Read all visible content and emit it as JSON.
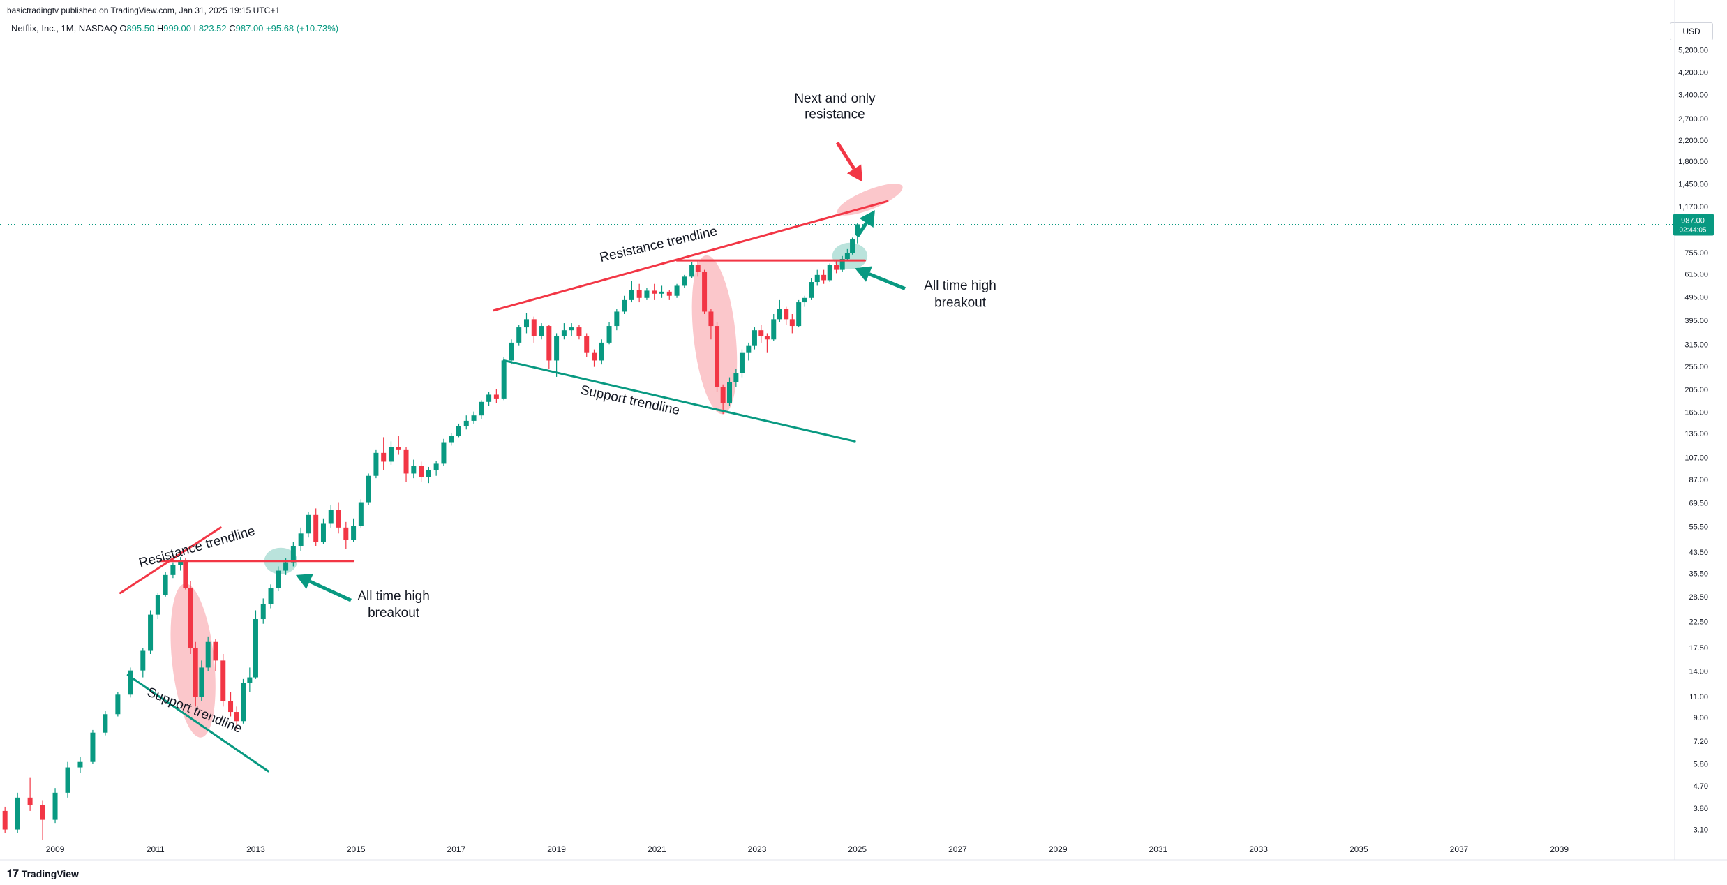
{
  "header": {
    "published": "basictradingtv published on TradingView.com, Jan 31, 2025 19:15 UTC+1"
  },
  "symbol": {
    "name": "Netflix, Inc., 1M, NASDAQ",
    "o_label": "O",
    "o_value": "895.50",
    "h_label": "H",
    "h_value": "999.00",
    "l_label": "L",
    "l_value": "823.52",
    "c_label": "C",
    "c_value": "987.00",
    "change": "+95.68 (+10.73%)"
  },
  "currency": "USD",
  "footer": {
    "brand": "TradingView"
  },
  "colors": {
    "up": "#089981",
    "down": "#f23645",
    "resistance": "#f23645",
    "support": "#089981",
    "price_badge": "#089981",
    "axis_text": "#131722"
  },
  "price_badge": {
    "price": "987.00",
    "countdown": "02:44:05"
  },
  "chart_data": {
    "type": "candlestick",
    "title": "",
    "y_scale": "log",
    "ylim": [
      2.6,
      5800
    ],
    "xlim": [
      2007.9,
      2041.3
    ],
    "y_ticks": [
      "3.10",
      "3.80",
      "4.70",
      "5.80",
      "7.20",
      "9.00",
      "11.00",
      "14.00",
      "17.50",
      "22.50",
      "28.50",
      "35.50",
      "43.50",
      "55.50",
      "69.50",
      "87.00",
      "107.00",
      "135.00",
      "165.00",
      "205.00",
      "255.00",
      "315.00",
      "395.00",
      "495.00",
      "615.00",
      "755.00",
      "1,170.00",
      "1,450.00",
      "1,800.00",
      "2,200.00",
      "2,700.00",
      "3,400.00",
      "4,200.00",
      "5,200.00"
    ],
    "x_ticks": [
      "2009",
      "2011",
      "2013",
      "2015",
      "2017",
      "2019",
      "2021",
      "2023",
      "2025",
      "2027",
      "2029",
      "2031",
      "2033",
      "2035",
      "2037",
      "2039"
    ],
    "last_price": 987.0,
    "candles": [
      [
        2008.0,
        3.7,
        3.85,
        3.0,
        3.1
      ],
      [
        2008.25,
        3.1,
        4.4,
        3.0,
        4.2
      ],
      [
        2008.5,
        4.2,
        5.1,
        3.7,
        3.9
      ],
      [
        2008.75,
        3.9,
        4.1,
        2.8,
        3.4
      ],
      [
        2009.0,
        3.4,
        4.6,
        3.3,
        4.4
      ],
      [
        2009.25,
        4.4,
        5.9,
        4.2,
        5.6
      ],
      [
        2009.5,
        5.6,
        6.2,
        5.3,
        5.9
      ],
      [
        2009.75,
        5.9,
        8.0,
        5.8,
        7.8
      ],
      [
        2010.0,
        7.8,
        9.6,
        7.6,
        9.3
      ],
      [
        2010.25,
        9.3,
        11.5,
        9.1,
        11.2
      ],
      [
        2010.5,
        11.2,
        14.5,
        10.9,
        14.1
      ],
      [
        2010.75,
        14.1,
        17.5,
        13.2,
        17.0
      ],
      [
        2010.9,
        17.0,
        25.0,
        16.5,
        24.0
      ],
      [
        2011.05,
        24.0,
        29.5,
        23.0,
        29.0
      ],
      [
        2011.2,
        29.0,
        36.0,
        28.5,
        35.0
      ],
      [
        2011.35,
        35.0,
        39.5,
        34.0,
        38.5
      ],
      [
        2011.5,
        38.5,
        41.5,
        36.5,
        40.0
      ],
      [
        2011.6,
        40.0,
        41.0,
        30.5,
        31.0
      ],
      [
        2011.7,
        31.0,
        33.0,
        16.5,
        17.5
      ],
      [
        2011.8,
        17.5,
        18.5,
        10.0,
        11.0
      ],
      [
        2011.92,
        11.0,
        15.5,
        10.5,
        14.5
      ],
      [
        2012.05,
        14.5,
        19.5,
        14.0,
        18.5
      ],
      [
        2012.2,
        18.5,
        19.0,
        14.0,
        15.5
      ],
      [
        2012.35,
        15.5,
        16.5,
        10.0,
        10.5
      ],
      [
        2012.5,
        10.5,
        11.5,
        9.1,
        9.5
      ],
      [
        2012.62,
        9.5,
        10.0,
        8.0,
        8.7
      ],
      [
        2012.75,
        8.7,
        13.0,
        8.5,
        12.5
      ],
      [
        2012.88,
        12.5,
        14.5,
        11.5,
        13.2
      ],
      [
        2013.0,
        13.2,
        25.0,
        13.0,
        23.0
      ],
      [
        2013.15,
        23.0,
        28.0,
        22.0,
        26.5
      ],
      [
        2013.3,
        26.5,
        32.0,
        25.5,
        31.0
      ],
      [
        2013.45,
        31.0,
        38.0,
        30.0,
        36.5
      ],
      [
        2013.6,
        36.5,
        41.0,
        35.0,
        39.5
      ],
      [
        2013.75,
        39.5,
        48.0,
        38.0,
        46.0
      ],
      [
        2013.9,
        46.0,
        55.0,
        44.0,
        52.0
      ],
      [
        2014.05,
        52.0,
        64.0,
        50.0,
        62.0
      ],
      [
        2014.2,
        62.0,
        66.0,
        46.0,
        48.0
      ],
      [
        2014.35,
        48.0,
        60.0,
        47.0,
        57.0
      ],
      [
        2014.5,
        57.0,
        68.0,
        55.0,
        65.0
      ],
      [
        2014.65,
        65.0,
        70.0,
        52.0,
        55.0
      ],
      [
        2014.8,
        55.0,
        58.0,
        45.0,
        49.0
      ],
      [
        2014.95,
        49.0,
        60.0,
        48.0,
        56.0
      ],
      [
        2015.1,
        56.0,
        72.0,
        55.0,
        70.0
      ],
      [
        2015.25,
        70.0,
        92.0,
        68.0,
        90.0
      ],
      [
        2015.4,
        90.0,
        115.0,
        88.0,
        112.0
      ],
      [
        2015.55,
        112.0,
        130.0,
        95.0,
        103.0
      ],
      [
        2015.7,
        103.0,
        125.0,
        100.0,
        118.0
      ],
      [
        2015.85,
        118.0,
        132.0,
        110.0,
        115.0
      ],
      [
        2016.0,
        115.0,
        118.0,
        85.0,
        92.0
      ],
      [
        2016.15,
        92.0,
        105.0,
        88.0,
        99.0
      ],
      [
        2016.3,
        99.0,
        103.0,
        85.0,
        89.0
      ],
      [
        2016.45,
        89.0,
        98.0,
        84.0,
        95.0
      ],
      [
        2016.6,
        95.0,
        104.0,
        90.0,
        101.0
      ],
      [
        2016.75,
        101.0,
        128.0,
        99.0,
        124.0
      ],
      [
        2016.9,
        124.0,
        135.0,
        120.0,
        132.0
      ],
      [
        2017.05,
        132.0,
        148.0,
        130.0,
        145.0
      ],
      [
        2017.2,
        145.0,
        160.0,
        140.0,
        152.0
      ],
      [
        2017.35,
        152.0,
        166.0,
        148.0,
        160.0
      ],
      [
        2017.5,
        160.0,
        185.0,
        155.0,
        182.0
      ],
      [
        2017.65,
        182.0,
        200.0,
        175.0,
        195.0
      ],
      [
        2017.8,
        195.0,
        205.0,
        180.0,
        188.0
      ],
      [
        2017.95,
        188.0,
        278.0,
        185.0,
        270.0
      ],
      [
        2018.1,
        270.0,
        330.0,
        260.0,
        320.0
      ],
      [
        2018.25,
        320.0,
        380.0,
        310.0,
        370.0
      ],
      [
        2018.4,
        370.0,
        423.0,
        350.0,
        400.0
      ],
      [
        2018.55,
        400.0,
        410.0,
        320.0,
        340.0
      ],
      [
        2018.7,
        340.0,
        385.0,
        330.0,
        375.0
      ],
      [
        2018.85,
        375.0,
        380.0,
        250.0,
        270.0
      ],
      [
        2019.0,
        270.0,
        350.0,
        231.0,
        340.0
      ],
      [
        2019.15,
        340.0,
        385.0,
        330.0,
        360.0
      ],
      [
        2019.3,
        360.0,
        385.0,
        340.0,
        370.0
      ],
      [
        2019.45,
        370.0,
        380.0,
        330.0,
        340.0
      ],
      [
        2019.6,
        340.0,
        350.0,
        280.0,
        290.0
      ],
      [
        2019.75,
        290.0,
        300.0,
        254.0,
        270.0
      ],
      [
        2019.9,
        270.0,
        330.0,
        260.0,
        320.0
      ],
      [
        2020.05,
        320.0,
        390.0,
        315.0,
        375.0
      ],
      [
        2020.2,
        375.0,
        440.0,
        360.0,
        430.0
      ],
      [
        2020.35,
        430.0,
        500.0,
        420.0,
        480.0
      ],
      [
        2020.5,
        480.0,
        575.0,
        470.0,
        530.0
      ],
      [
        2020.65,
        530.0,
        560.0,
        470.0,
        490.0
      ],
      [
        2020.8,
        490.0,
        540.0,
        480.0,
        525.0
      ],
      [
        2020.95,
        525.0,
        560.0,
        480.0,
        510.0
      ],
      [
        2021.1,
        510.0,
        550.0,
        490.0,
        520.0
      ],
      [
        2021.25,
        520.0,
        530.0,
        480.0,
        500.0
      ],
      [
        2021.4,
        500.0,
        560.0,
        490.0,
        550.0
      ],
      [
        2021.55,
        550.0,
        610.0,
        540.0,
        600.0
      ],
      [
        2021.7,
        600.0,
        690.0,
        590.0,
        670.0
      ],
      [
        2021.82,
        670.0,
        700.0,
        600.0,
        630.0
      ],
      [
        2021.95,
        630.0,
        640.0,
        420.0,
        430.0
      ],
      [
        2022.08,
        430.0,
        440.0,
        330.0,
        375.0
      ],
      [
        2022.2,
        375.0,
        390.0,
        200.0,
        210.0
      ],
      [
        2022.32,
        210.0,
        215.0,
        162.0,
        180.0
      ],
      [
        2022.45,
        180.0,
        230.0,
        175.0,
        220.0
      ],
      [
        2022.58,
        220.0,
        250.0,
        210.0,
        240.0
      ],
      [
        2022.7,
        240.0,
        300.0,
        230.0,
        290.0
      ],
      [
        2022.83,
        290.0,
        320.0,
        270.0,
        310.0
      ],
      [
        2022.95,
        310.0,
        370.0,
        300.0,
        360.0
      ],
      [
        2023.08,
        360.0,
        380.0,
        320.0,
        340.0
      ],
      [
        2023.2,
        340.0,
        350.0,
        290.0,
        330.0
      ],
      [
        2023.33,
        330.0,
        420.0,
        325.0,
        400.0
      ],
      [
        2023.45,
        400.0,
        480.0,
        390.0,
        440.0
      ],
      [
        2023.58,
        440.0,
        450.0,
        380.0,
        400.0
      ],
      [
        2023.7,
        400.0,
        420.0,
        350.0,
        375.0
      ],
      [
        2023.83,
        375.0,
        480.0,
        370.0,
        470.0
      ],
      [
        2023.95,
        470.0,
        500.0,
        450.0,
        490.0
      ],
      [
        2024.08,
        490.0,
        590.0,
        480.0,
        570.0
      ],
      [
        2024.2,
        570.0,
        640.0,
        550.0,
        610.0
      ],
      [
        2024.33,
        610.0,
        640.0,
        560.0,
        580.0
      ],
      [
        2024.45,
        580.0,
        680.0,
        570.0,
        670.0
      ],
      [
        2024.58,
        670.0,
        700.0,
        620.0,
        640.0
      ],
      [
        2024.7,
        640.0,
        730.0,
        630.0,
        710.0
      ],
      [
        2024.8,
        710.0,
        780.0,
        700.0,
        750.0
      ],
      [
        2024.9,
        750.0,
        870.0,
        740.0,
        855.0
      ],
      [
        2025.0,
        895.5,
        999.0,
        823.52,
        987.0
      ]
    ],
    "lines": [
      {
        "kind": "resistance",
        "from": [
          2010.3,
          29.5
        ],
        "to": [
          2012.3,
          55.0
        ]
      },
      {
        "kind": "resistance",
        "from": [
          2011.1,
          40.0
        ],
        "to": [
          2014.95,
          40.0
        ]
      },
      {
        "kind": "support",
        "from": [
          2010.45,
          13.5
        ],
        "to": [
          2013.25,
          5.4
        ]
      },
      {
        "kind": "resistance",
        "from": [
          2017.75,
          435.0
        ],
        "to": [
          2025.6,
          1230.0
        ]
      },
      {
        "kind": "resistance",
        "from": [
          2021.4,
          700.0
        ],
        "to": [
          2025.15,
          700.0
        ]
      },
      {
        "kind": "support",
        "from": [
          2017.95,
          270.0
        ],
        "to": [
          2024.95,
          125.0
        ]
      }
    ],
    "zones": [
      {
        "kind": "drop",
        "center": [
          2011.75,
          15.5
        ],
        "rx_years": 0.42,
        "ry_decades": 0.32,
        "rotate": -6
      },
      {
        "kind": "breakout",
        "center": [
          2013.5,
          40.0
        ],
        "rx_years": 0.33,
        "ry_decades": 0.055,
        "rotate": 0
      },
      {
        "kind": "drop",
        "center": [
          2022.15,
          345.0
        ],
        "rx_years": 0.42,
        "ry_decades": 0.33,
        "rotate": -6
      },
      {
        "kind": "breakout",
        "center": [
          2024.85,
          730.0
        ],
        "rx_years": 0.35,
        "ry_decades": 0.055,
        "rotate": 0
      },
      {
        "kind": "target",
        "center": [
          2025.25,
          1250.0
        ],
        "rx_years": 0.7,
        "ry_decades": 0.04,
        "rotate": -22
      }
    ],
    "arrows": [
      {
        "kind": "red",
        "from": [
          2024.6,
          2150.0
        ],
        "to": [
          2025.1,
          1480.0
        ]
      },
      {
        "kind": "green",
        "from": [
          2025.0,
          880.0
        ],
        "to": [
          2025.35,
          1130.0
        ]
      },
      {
        "kind": "green",
        "from": [
          2025.95,
          535.0
        ],
        "to": [
          2024.95,
          650.0
        ]
      },
      {
        "kind": "green",
        "from": [
          2014.9,
          27.5
        ],
        "to": [
          2013.8,
          35.0
        ]
      }
    ],
    "annotations": [
      {
        "text": "Resistance trendline",
        "at": [
          2011.85,
          44.0
        ],
        "rotate": -16
      },
      {
        "text": "Support trendline",
        "at": [
          2011.75,
          9.3
        ],
        "rotate": 22
      },
      {
        "text": "All time high",
        "at": [
          2015.75,
          27.5
        ],
        "rotate": 0
      },
      {
        "text": "breakout",
        "at": [
          2015.75,
          23.5
        ],
        "rotate": 0
      },
      {
        "text": "Resistance trendline",
        "at": [
          2021.05,
          785.0
        ],
        "rotate": -13
      },
      {
        "text": "Support trendline",
        "at": [
          2020.45,
          178.0
        ],
        "rotate": 12
      },
      {
        "text": "All time high",
        "at": [
          2027.05,
          530.0
        ],
        "rotate": 0
      },
      {
        "text": "breakout",
        "at": [
          2027.05,
          450.0
        ],
        "rotate": 0
      },
      {
        "text": "Next and only",
        "at": [
          2024.55,
          3150.0
        ],
        "rotate": 0
      },
      {
        "text": "resistance",
        "at": [
          2024.55,
          2710.0
        ],
        "rotate": 0
      }
    ]
  }
}
